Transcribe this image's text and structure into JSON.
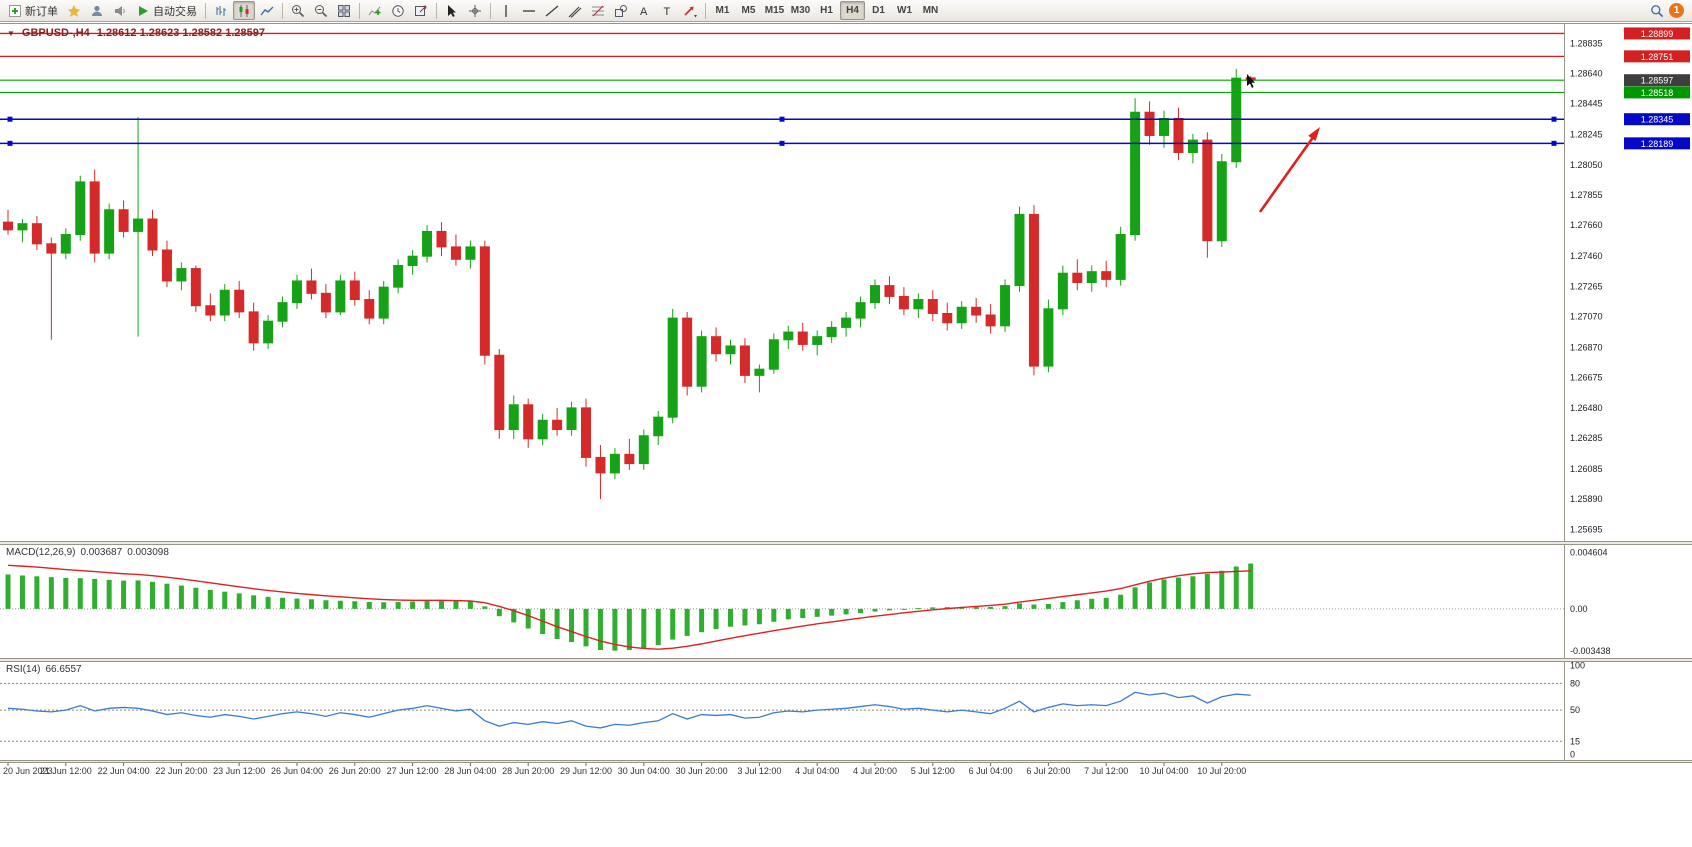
{
  "toolbar": {
    "new_order": "新订单",
    "autotrading": "自动交易",
    "timeframes": [
      "M1",
      "M5",
      "M15",
      "M30",
      "H1",
      "H4",
      "D1",
      "W1",
      "MN"
    ],
    "active_timeframe": "H4",
    "notification_badge": "1"
  },
  "header": {
    "symbol": "GBPUSD-,H4",
    "ohlc": "1.28612 1.28623 1.28582 1.28597"
  },
  "indicators": {
    "macd": {
      "label": "MACD(12,26,9)",
      "value_main": "0.003687",
      "value_signal": "0.003098"
    },
    "rsi": {
      "label": "RSI(14)",
      "value": "66.6557"
    }
  },
  "chart_data": {
    "type": "candlestick",
    "symbol": "GBPUSD",
    "timeframe": "H4",
    "current_bar": {
      "open": 1.28612,
      "high": 1.28623,
      "low": 1.28582,
      "close": 1.28597
    },
    "price_axis_ticks": [
      "1.28835",
      "1.28640",
      "1.28445",
      "1.28245",
      "1.28050",
      "1.27855",
      "1.27660",
      "1.27460",
      "1.27265",
      "1.27070",
      "1.26870",
      "1.26675",
      "1.26480",
      "1.26285",
      "1.26085",
      "1.25890",
      "1.25695"
    ],
    "time_axis_labels": [
      "20 Jun 2023",
      "21 Jun 12:00",
      "22 Jun 04:00",
      "22 Jun 20:00",
      "23 Jun 12:00",
      "26 Jun 04:00",
      "26 Jun 20:00",
      "27 Jun 12:00",
      "28 Jun 04:00",
      "28 Jun 20:00",
      "29 Jun 12:00",
      "30 Jun 04:00",
      "30 Jun 20:00",
      "3 Jul 12:00",
      "4 Jul 04:00",
      "4 Jul 20:00",
      "5 Jul 12:00",
      "6 Jul 04:00",
      "6 Jul 20:00",
      "7 Jul 12:00",
      "10 Jul 04:00",
      "10 Jul 20:00"
    ],
    "candles": [
      [
        1.2768,
        1.2776,
        1.276,
        1.2763
      ],
      [
        1.2763,
        1.277,
        1.2755,
        1.2767
      ],
      [
        1.2767,
        1.2772,
        1.275,
        1.2754
      ],
      [
        1.2754,
        1.2758,
        1.2692,
        1.2748
      ],
      [
        1.2748,
        1.2764,
        1.2744,
        1.276
      ],
      [
        1.276,
        1.2798,
        1.2756,
        1.2794
      ],
      [
        1.2794,
        1.2802,
        1.2742,
        1.2748
      ],
      [
        1.2748,
        1.278,
        1.2744,
        1.2776
      ],
      [
        1.2776,
        1.2782,
        1.2758,
        1.2762
      ],
      [
        1.2762,
        1.2836,
        1.2694,
        1.277
      ],
      [
        1.277,
        1.2776,
        1.2746,
        1.275
      ],
      [
        1.275,
        1.2756,
        1.2726,
        1.273
      ],
      [
        1.273,
        1.2742,
        1.2724,
        1.2738
      ],
      [
        1.2738,
        1.274,
        1.271,
        1.2714
      ],
      [
        1.2714,
        1.2722,
        1.2704,
        1.2708
      ],
      [
        1.2708,
        1.2728,
        1.2704,
        1.2724
      ],
      [
        1.2724,
        1.273,
        1.2706,
        1.271
      ],
      [
        1.271,
        1.2716,
        1.2685,
        1.269
      ],
      [
        1.269,
        1.2708,
        1.2686,
        1.2704
      ],
      [
        1.2704,
        1.272,
        1.27,
        1.2716
      ],
      [
        1.2716,
        1.2734,
        1.2712,
        1.273
      ],
      [
        1.273,
        1.2738,
        1.2718,
        1.2722
      ],
      [
        1.2722,
        1.2728,
        1.2706,
        1.271
      ],
      [
        1.271,
        1.2734,
        1.2708,
        1.273
      ],
      [
        1.273,
        1.2736,
        1.2714,
        1.2718
      ],
      [
        1.2718,
        1.2724,
        1.2702,
        1.2706
      ],
      [
        1.2706,
        1.273,
        1.2702,
        1.2726
      ],
      [
        1.2726,
        1.2744,
        1.2722,
        1.274
      ],
      [
        1.274,
        1.275,
        1.2734,
        1.2746
      ],
      [
        1.2746,
        1.2766,
        1.2742,
        1.2762
      ],
      [
        1.2762,
        1.2768,
        1.2746,
        1.2752
      ],
      [
        1.2752,
        1.276,
        1.274,
        1.2744
      ],
      [
        1.2744,
        1.2756,
        1.2738,
        1.2752
      ],
      [
        1.2752,
        1.2756,
        1.2676,
        1.2682
      ],
      [
        1.2682,
        1.2686,
        1.2628,
        1.2634
      ],
      [
        1.2634,
        1.2656,
        1.2628,
        1.265
      ],
      [
        1.265,
        1.2654,
        1.2622,
        1.2628
      ],
      [
        1.2628,
        1.2644,
        1.2624,
        1.264
      ],
      [
        1.264,
        1.2648,
        1.263,
        1.2634
      ],
      [
        1.2634,
        1.2652,
        1.263,
        1.2648
      ],
      [
        1.2648,
        1.2654,
        1.261,
        1.2616
      ],
      [
        1.2616,
        1.2624,
        1.2589,
        1.2606
      ],
      [
        1.2606,
        1.2622,
        1.2602,
        1.2618
      ],
      [
        1.2618,
        1.2628,
        1.2608,
        1.2612
      ],
      [
        1.2612,
        1.2634,
        1.2608,
        1.263
      ],
      [
        1.263,
        1.2646,
        1.2624,
        1.2642
      ],
      [
        1.2642,
        1.2712,
        1.2638,
        1.2706
      ],
      [
        1.2706,
        1.271,
        1.2656,
        1.2662
      ],
      [
        1.2662,
        1.2698,
        1.2658,
        1.2694
      ],
      [
        1.2694,
        1.27,
        1.2678,
        1.2683
      ],
      [
        1.2683,
        1.2692,
        1.2676,
        1.2688
      ],
      [
        1.2688,
        1.2693,
        1.2664,
        1.2669
      ],
      [
        1.2669,
        1.2676,
        1.2658,
        1.2673
      ],
      [
        1.2673,
        1.2696,
        1.267,
        1.2692
      ],
      [
        1.2692,
        1.2701,
        1.2686,
        1.2697
      ],
      [
        1.2697,
        1.2703,
        1.2685,
        1.2689
      ],
      [
        1.2689,
        1.2698,
        1.2682,
        1.2694
      ],
      [
        1.2694,
        1.2704,
        1.269,
        1.27
      ],
      [
        1.27,
        1.271,
        1.2694,
        1.2706
      ],
      [
        1.2706,
        1.272,
        1.27,
        1.2716
      ],
      [
        1.2716,
        1.2731,
        1.2712,
        1.2727
      ],
      [
        1.2727,
        1.2733,
        1.2715,
        1.272
      ],
      [
        1.272,
        1.2726,
        1.2708,
        1.2712
      ],
      [
        1.2712,
        1.2722,
        1.2706,
        1.2718
      ],
      [
        1.2718,
        1.2724,
        1.2704,
        1.2709
      ],
      [
        1.2709,
        1.2716,
        1.2698,
        1.2703
      ],
      [
        1.2703,
        1.2717,
        1.2699,
        1.2713
      ],
      [
        1.2713,
        1.2719,
        1.2703,
        1.2708
      ],
      [
        1.2708,
        1.2715,
        1.2696,
        1.2701
      ],
      [
        1.2701,
        1.2731,
        1.2697,
        1.2727
      ],
      [
        1.2727,
        1.2778,
        1.2723,
        1.2773
      ],
      [
        1.2773,
        1.2779,
        1.2669,
        1.2675
      ],
      [
        1.2675,
        1.2718,
        1.2671,
        1.2712
      ],
      [
        1.2712,
        1.274,
        1.2708,
        1.2735
      ],
      [
        1.2735,
        1.2744,
        1.2724,
        1.2729
      ],
      [
        1.2729,
        1.274,
        1.2723,
        1.2736
      ],
      [
        1.2736,
        1.2743,
        1.2726,
        1.2731
      ],
      [
        1.2731,
        1.2765,
        1.2727,
        1.276
      ],
      [
        1.276,
        1.2848,
        1.2756,
        1.2839
      ],
      [
        1.2839,
        1.2846,
        1.2818,
        1.2824
      ],
      [
        1.2824,
        1.284,
        1.2816,
        1.2835
      ],
      [
        1.2835,
        1.2842,
        1.2808,
        1.2813
      ],
      [
        1.2813,
        1.2825,
        1.2806,
        1.2821
      ],
      [
        1.2821,
        1.2826,
        1.2745,
        1.2756
      ],
      [
        1.2756,
        1.2812,
        1.2752,
        1.2807
      ],
      [
        1.2807,
        1.2867,
        1.2803,
        1.2861
      ],
      [
        1.28612,
        1.28623,
        1.28582,
        1.28597
      ]
    ],
    "hlines": [
      {
        "price": 1.28899,
        "label": "1.28899",
        "color": "#e01818",
        "tag_bg": "#d42020",
        "width": 1.3,
        "handles": false
      },
      {
        "price": 1.28751,
        "label": "1.28751",
        "color": "#e01818",
        "tag_bg": "#d42020",
        "width": 1.3,
        "handles": false
      },
      {
        "price": 1.28597,
        "label": "1.28597",
        "color": "#00a800",
        "tag_bg": "#3f3f3f",
        "width": 1.2,
        "handles": false
      },
      {
        "price": 1.28518,
        "label": "1.28518",
        "color": "#00a800",
        "tag_bg": "#009800",
        "width": 1.2,
        "handles": false
      },
      {
        "price": 1.28345,
        "label": "1.28345",
        "color": "#0408c8",
        "tag_bg": "#0408c8",
        "width": 1.5,
        "handles": true
      },
      {
        "price": 1.28189,
        "label": "1.28189",
        "color": "#0408c8",
        "tag_bg": "#0408c8",
        "width": 1.5,
        "handles": true
      }
    ],
    "macd": {
      "name": "MACD(12,26,9)",
      "value_main": 0.003687,
      "value_signal": 0.003098,
      "axis": [
        "0.004604",
        "0.00",
        "-0.003438"
      ],
      "hist_color": "#2fae2f",
      "signal_color": "#dd2222",
      "histogram": [
        0.0028,
        0.00272,
        0.00265,
        0.00258,
        0.00252,
        0.0025,
        0.00244,
        0.00236,
        0.0023,
        0.00232,
        0.0022,
        0.00205,
        0.0019,
        0.00172,
        0.00155,
        0.0014,
        0.00126,
        0.0011,
        0.00098,
        0.0009,
        0.00084,
        0.00078,
        0.0007,
        0.00066,
        0.00062,
        0.00056,
        0.00054,
        0.00056,
        0.0006,
        0.00068,
        0.0007,
        0.00066,
        0.0006,
        0.0002,
        -0.0006,
        -0.0011,
        -0.0016,
        -0.00205,
        -0.00245,
        -0.0027,
        -0.00305,
        -0.00335,
        -0.0034,
        -0.00335,
        -0.0032,
        -0.00295,
        -0.0025,
        -0.0022,
        -0.0019,
        -0.00165,
        -0.00145,
        -0.00135,
        -0.00125,
        -0.00105,
        -0.00085,
        -0.00075,
        -0.00065,
        -0.00055,
        -0.00045,
        -0.00035,
        -0.00022,
        -0.00012,
        -2e-05,
        6e-05,
        0.00012,
        0.00014,
        0.00016,
        0.00018,
        0.00016,
        0.00022,
        0.00045,
        0.00035,
        0.0004,
        0.00055,
        0.0007,
        0.00082,
        0.0009,
        0.00115,
        0.00175,
        0.00215,
        0.0024,
        0.00255,
        0.00265,
        0.00285,
        0.0031,
        0.00345,
        0.00369
      ],
      "signal": [
        0.00355,
        0.00348,
        0.0034,
        0.0033,
        0.0032,
        0.00312,
        0.00304,
        0.00295,
        0.00286,
        0.0028,
        0.0027,
        0.00258,
        0.00244,
        0.00228,
        0.00212,
        0.00196,
        0.0018,
        0.00164,
        0.0015,
        0.00138,
        0.00126,
        0.00116,
        0.00106,
        0.00098,
        0.0009,
        0.00082,
        0.00076,
        0.00072,
        0.0007,
        0.0007,
        0.0007,
        0.00068,
        0.00064,
        0.0005,
        0.0002,
        -0.00015,
        -0.00055,
        -0.001,
        -0.00145,
        -0.00185,
        -0.00225,
        -0.00262,
        -0.0029,
        -0.0031,
        -0.00322,
        -0.00328,
        -0.0032,
        -0.00305,
        -0.00285,
        -0.00262,
        -0.0024,
        -0.00218,
        -0.00198,
        -0.00178,
        -0.00158,
        -0.0014,
        -0.00122,
        -0.00106,
        -0.0009,
        -0.00075,
        -0.0006,
        -0.00046,
        -0.00032,
        -0.0002,
        -8e-05,
        2e-05,
        0.00012,
        0.0002,
        0.00028,
        0.00038,
        0.00055,
        0.0007,
        0.00085,
        0.001,
        0.00115,
        0.0013,
        0.00145,
        0.00165,
        0.00195,
        0.00225,
        0.0025,
        0.0027,
        0.00285,
        0.00295,
        0.003,
        0.00305,
        0.0031
      ]
    },
    "rsi": {
      "period": 14,
      "value": 66.6557,
      "axis": [
        "100",
        "80",
        "50",
        "15",
        "0"
      ],
      "levels": [
        80,
        50,
        15
      ],
      "color": "#3a7bd5",
      "values": [
        52,
        51,
        49,
        48,
        50,
        55,
        49,
        52,
        53,
        52,
        49,
        45,
        47,
        44,
        42,
        45,
        43,
        40,
        43,
        46,
        48,
        46,
        43,
        47,
        45,
        42,
        46,
        50,
        52,
        55,
        52,
        49,
        51,
        38,
        32,
        36,
        34,
        37,
        35,
        38,
        32,
        30,
        34,
        33,
        36,
        38,
        46,
        40,
        45,
        44,
        45,
        41,
        42,
        47,
        49,
        48,
        50,
        51,
        52,
        54,
        56,
        54,
        51,
        52,
        50,
        48,
        50,
        48,
        46,
        52,
        60,
        48,
        53,
        57,
        55,
        56,
        55,
        60,
        70,
        67,
        69,
        64,
        66,
        58,
        65,
        68,
        66.66
      ]
    },
    "annotations": [
      {
        "type": "arrow",
        "from": [
          1260,
          212
        ],
        "to": [
          1320,
          127
        ],
        "color": "#e02020"
      }
    ],
    "style": {
      "up_color": "#16a216",
      "down_color": "#d42a2a",
      "bg": "#ffffff"
    }
  }
}
